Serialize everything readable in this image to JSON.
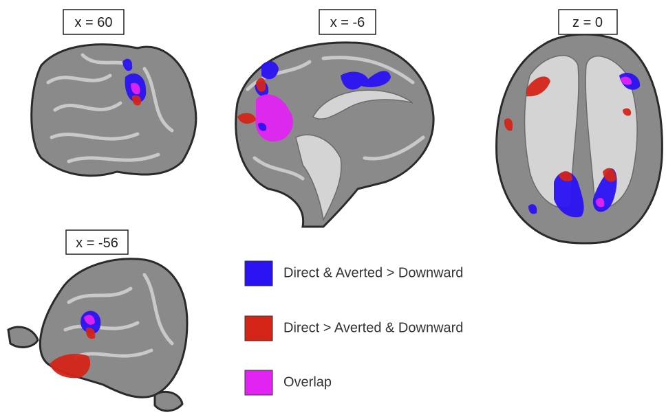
{
  "panels": [
    {
      "label": "x = 60"
    },
    {
      "label": "x = -6"
    },
    {
      "label": "z = 0"
    },
    {
      "label": "x = -56"
    }
  ],
  "legend": [
    {
      "label": "Direct & Averted > Downward",
      "color": "#2a12f2"
    },
    {
      "label": "Direct > Averted & Downward",
      "color": "#d42418"
    },
    {
      "label": "Overlap",
      "color": "#e224f2"
    }
  ]
}
